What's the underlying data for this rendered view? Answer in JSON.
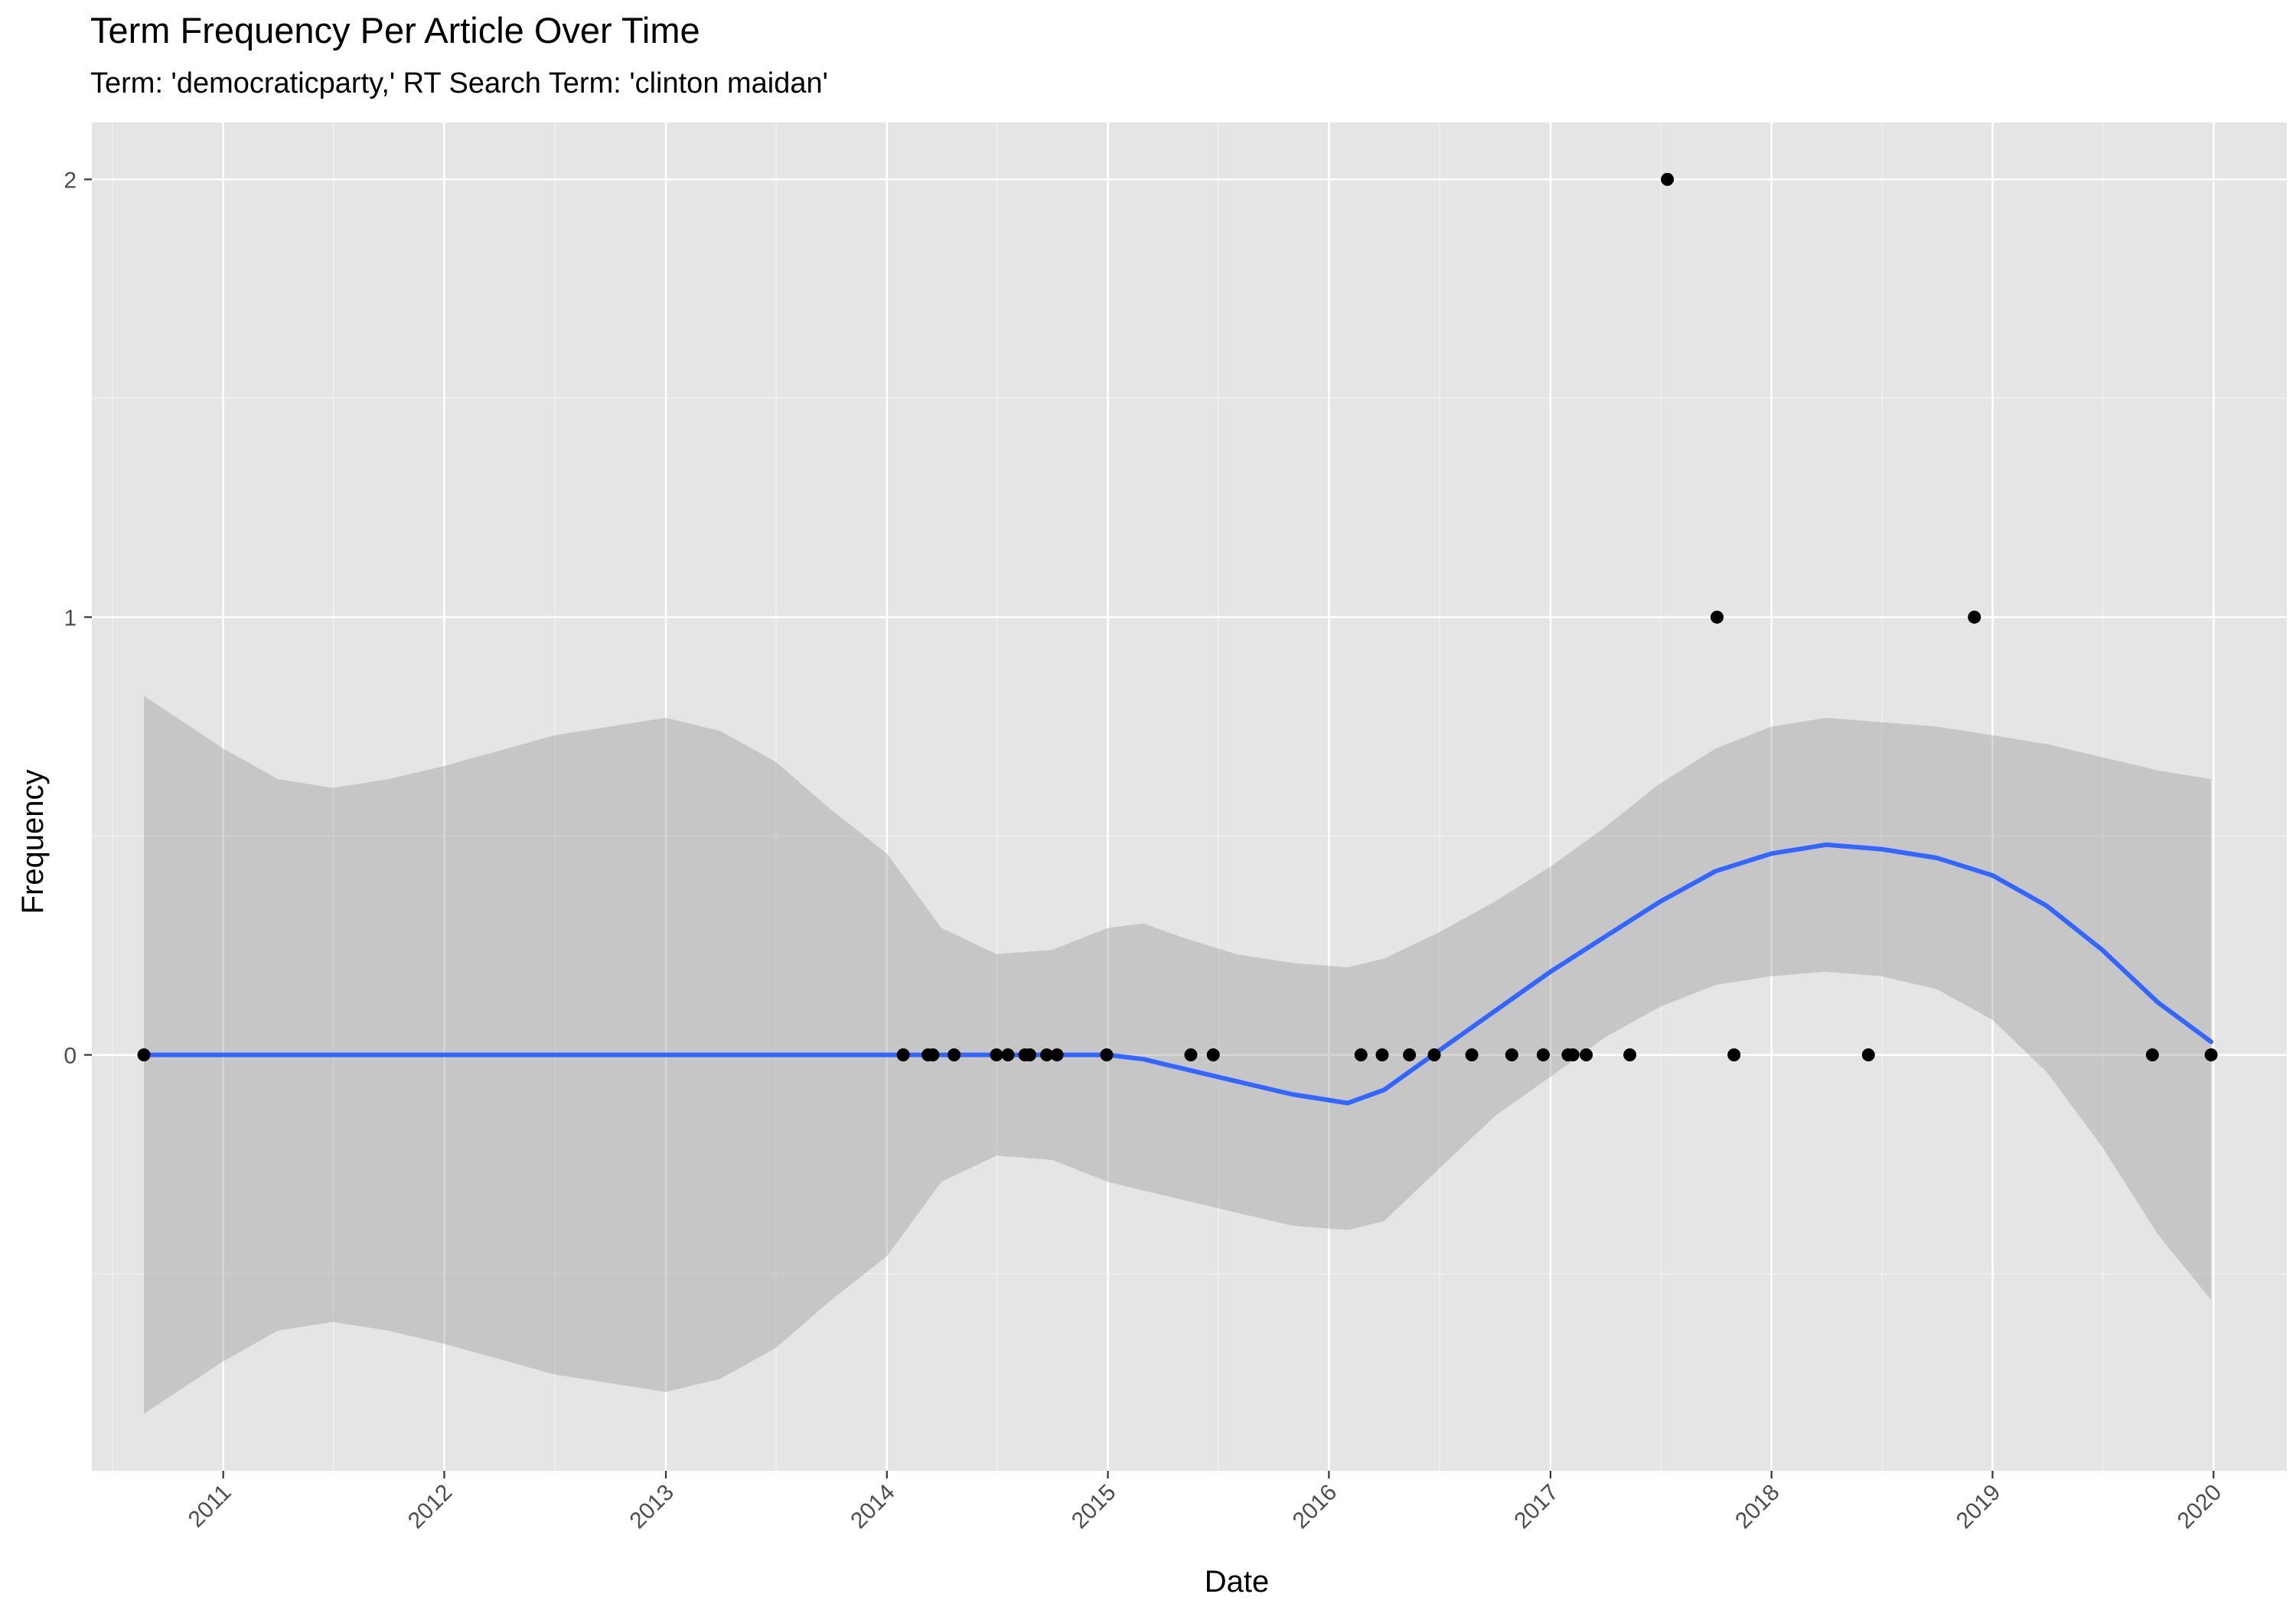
{
  "chart_data": {
    "type": "scatter",
    "title": "Term Frequency Per Article Over Time",
    "subtitle": "Term: 'democraticparty,' RT Search Term: 'clinton maidan'",
    "xlabel": "Date",
    "ylabel": "Frequency",
    "x_ticks": [
      "2011",
      "2012",
      "2013",
      "2014",
      "2015",
      "2016",
      "2017",
      "2018",
      "2019",
      "2020"
    ],
    "y_ticks": [
      "0",
      "1",
      "2"
    ],
    "xlim": [
      "2010-05-29",
      "2020-05-01"
    ],
    "ylim": [
      -0.95,
      2.13
    ],
    "grid": true,
    "points": [
      {
        "x": "2010-08-23",
        "y": 0
      },
      {
        "x": "2014-01-28",
        "y": 0
      },
      {
        "x": "2014-03-10",
        "y": 0
      },
      {
        "x": "2014-03-18",
        "y": 0
      },
      {
        "x": "2014-04-22",
        "y": 0
      },
      {
        "x": "2014-07-01",
        "y": 0
      },
      {
        "x": "2014-07-20",
        "y": 0
      },
      {
        "x": "2014-08-17",
        "y": 0
      },
      {
        "x": "2014-08-25",
        "y": 0
      },
      {
        "x": "2014-09-22",
        "y": 0
      },
      {
        "x": "2014-10-09",
        "y": 0
      },
      {
        "x": "2014-12-30",
        "y": 0
      },
      {
        "x": "2015-05-18",
        "y": 0
      },
      {
        "x": "2015-06-24",
        "y": 0
      },
      {
        "x": "2016-02-23",
        "y": 0
      },
      {
        "x": "2016-03-29",
        "y": 0
      },
      {
        "x": "2016-05-13",
        "y": 0
      },
      {
        "x": "2016-06-23",
        "y": 0
      },
      {
        "x": "2016-08-24",
        "y": 0
      },
      {
        "x": "2016-10-29",
        "y": 0
      },
      {
        "x": "2016-12-20",
        "y": 0
      },
      {
        "x": "2017-01-30",
        "y": 0
      },
      {
        "x": "2017-02-07",
        "y": 0
      },
      {
        "x": "2017-03-01",
        "y": 0
      },
      {
        "x": "2017-05-12",
        "y": 0
      },
      {
        "x": "2017-07-13",
        "y": 2
      },
      {
        "x": "2017-10-03",
        "y": 1
      },
      {
        "x": "2017-10-31",
        "y": 0
      },
      {
        "x": "2018-06-10",
        "y": 0
      },
      {
        "x": "2018-12-02",
        "y": 1
      },
      {
        "x": "2019-09-22",
        "y": 0
      },
      {
        "x": "2019-12-28",
        "y": 0
      }
    ],
    "smooth": {
      "method": "loess",
      "color": "#3366FF",
      "band_color": "#999999",
      "points": [
        {
          "x": "2010-08-23",
          "y": 0,
          "lower": -0.82,
          "upper": 0.82
        },
        {
          "x": "2011-01-01",
          "y": 0,
          "lower": -0.7,
          "upper": 0.7
        },
        {
          "x": "2011-04-01",
          "y": 0,
          "lower": -0.63,
          "upper": 0.63
        },
        {
          "x": "2011-07-01",
          "y": 0,
          "lower": -0.61,
          "upper": 0.61
        },
        {
          "x": "2011-10-01",
          "y": 0,
          "lower": -0.63,
          "upper": 0.63
        },
        {
          "x": "2012-01-01",
          "y": 0,
          "lower": -0.66,
          "upper": 0.66
        },
        {
          "x": "2012-07-01",
          "y": 0,
          "lower": -0.73,
          "upper": 0.73
        },
        {
          "x": "2013-01-01",
          "y": 0,
          "lower": -0.77,
          "upper": 0.77
        },
        {
          "x": "2013-04-01",
          "y": 0,
          "lower": -0.74,
          "upper": 0.74
        },
        {
          "x": "2013-07-01",
          "y": 0,
          "lower": -0.67,
          "upper": 0.67
        },
        {
          "x": "2013-10-01",
          "y": 0,
          "lower": -0.56,
          "upper": 0.56
        },
        {
          "x": "2014-01-01",
          "y": 0,
          "lower": -0.46,
          "upper": 0.46
        },
        {
          "x": "2014-04-01",
          "y": 0,
          "lower": -0.29,
          "upper": 0.29
        },
        {
          "x": "2014-07-01",
          "y": 0,
          "lower": -0.23,
          "upper": 0.23
        },
        {
          "x": "2014-10-01",
          "y": 0,
          "lower": -0.24,
          "upper": 0.24
        },
        {
          "x": "2015-01-01",
          "y": 0,
          "lower": -0.29,
          "upper": 0.29
        },
        {
          "x": "2015-03-01",
          "y": -0.01,
          "lower": -0.31,
          "upper": 0.3
        },
        {
          "x": "2015-05-01",
          "y": -0.03,
          "lower": -0.33,
          "upper": 0.27
        },
        {
          "x": "2015-08-01",
          "y": -0.06,
          "lower": -0.36,
          "upper": 0.23
        },
        {
          "x": "2015-11-01",
          "y": -0.09,
          "lower": -0.39,
          "upper": 0.21
        },
        {
          "x": "2016-02-01",
          "y": -0.11,
          "lower": -0.4,
          "upper": 0.2
        },
        {
          "x": "2016-04-01",
          "y": -0.08,
          "lower": -0.38,
          "upper": 0.22
        },
        {
          "x": "2016-07-01",
          "y": 0.01,
          "lower": -0.26,
          "upper": 0.28
        },
        {
          "x": "2016-10-01",
          "y": 0.1,
          "lower": -0.14,
          "upper": 0.35
        },
        {
          "x": "2017-01-01",
          "y": 0.19,
          "lower": -0.05,
          "upper": 0.43
        },
        {
          "x": "2017-04-01",
          "y": 0.27,
          "lower": 0.04,
          "upper": 0.52
        },
        {
          "x": "2017-07-01",
          "y": 0.35,
          "lower": 0.11,
          "upper": 0.62
        },
        {
          "x": "2017-10-01",
          "y": 0.42,
          "lower": 0.16,
          "upper": 0.7
        },
        {
          "x": "2018-01-01",
          "y": 0.46,
          "lower": 0.18,
          "upper": 0.75
        },
        {
          "x": "2018-04-01",
          "y": 0.48,
          "lower": 0.19,
          "upper": 0.77
        },
        {
          "x": "2018-07-01",
          "y": 0.47,
          "lower": 0.18,
          "upper": 0.76
        },
        {
          "x": "2018-10-01",
          "y": 0.45,
          "lower": 0.15,
          "upper": 0.75
        },
        {
          "x": "2019-01-01",
          "y": 0.41,
          "lower": 0.08,
          "upper": 0.73
        },
        {
          "x": "2019-04-01",
          "y": 0.34,
          "lower": -0.04,
          "upper": 0.71
        },
        {
          "x": "2019-07-01",
          "y": 0.24,
          "lower": -0.21,
          "upper": 0.68
        },
        {
          "x": "2019-10-01",
          "y": 0.12,
          "lower": -0.41,
          "upper": 0.65
        },
        {
          "x": "2019-12-28",
          "y": 0.03,
          "lower": -0.56,
          "upper": 0.63
        }
      ]
    }
  }
}
